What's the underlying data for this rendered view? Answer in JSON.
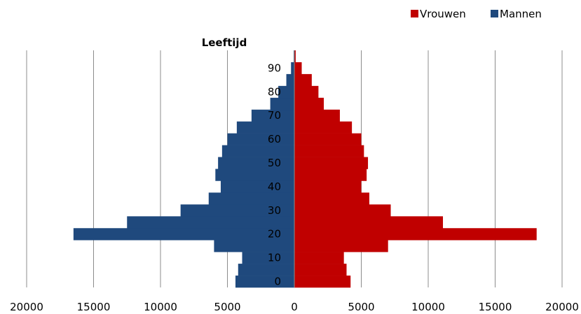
{
  "chart_data": {
    "type": "bar",
    "orientation": "horizontal",
    "subtype": "population-pyramid",
    "y_axis_title": "Leeftijd",
    "age_groups": [
      "0-4",
      "5-9",
      "10-14",
      "15-19",
      "20-24",
      "25-29",
      "30-34",
      "35-39",
      "40-44",
      "45-49",
      "50-54",
      "55-59",
      "60-64",
      "65-69",
      "70-74",
      "75-79",
      "80-84",
      "85-89",
      "90-94",
      "95+"
    ],
    "y_tick_labels": [
      "0",
      "10",
      "20",
      "30",
      "40",
      "50",
      "60",
      "70",
      "80",
      "90"
    ],
    "x_tick_labels": [
      "20000",
      "15000",
      "10000",
      "5000",
      "0",
      "5000",
      "10000",
      "15000",
      "20000"
    ],
    "xlim": [
      -20000,
      20000
    ],
    "grid": "vertical",
    "legend_position": "top-right",
    "series": [
      {
        "name": "Vrouwen",
        "color": "#c00000",
        "values": [
          4200,
          3900,
          3700,
          7000,
          18100,
          11100,
          7200,
          5600,
          5000,
          5400,
          5500,
          5200,
          5000,
          4300,
          3400,
          2200,
          1800,
          1300,
          550,
          100
        ]
      },
      {
        "name": "Mannen",
        "color": "#1f497d",
        "values": [
          4400,
          4200,
          3900,
          6000,
          16500,
          12500,
          8500,
          6400,
          5500,
          5900,
          5700,
          5400,
          5000,
          4300,
          3200,
          1800,
          1200,
          600,
          250,
          50
        ]
      }
    ]
  }
}
